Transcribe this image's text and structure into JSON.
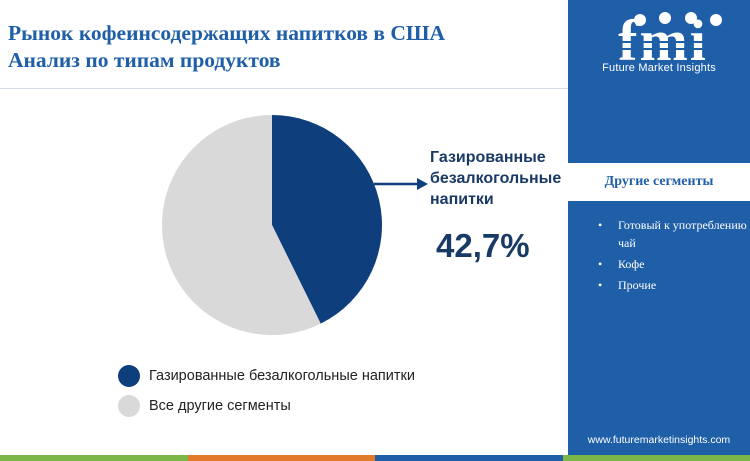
{
  "title": {
    "line1": "Рынок кофеинсодержащих напитков в США",
    "line2": "Анализ по типам продуктов"
  },
  "chart_data": {
    "type": "pie",
    "categories": [
      "Газированные безалкогольные напитки",
      "Все другие сегменты"
    ],
    "values": [
      42.7,
      57.3
    ],
    "colors": [
      "#0e3f7c",
      "#d9d9d9"
    ],
    "title": "",
    "legend_position": "bottom-left"
  },
  "callout": {
    "label": "Газированные безалкогольные напитки",
    "value": "42,7%"
  },
  "legend": [
    {
      "label": "Газированные безалкогольные напитки",
      "color": "#0e3f7c"
    },
    {
      "label": "Все другие сегменты",
      "color": "#d9d9d9"
    }
  ],
  "sidebar": {
    "brand": "fmi",
    "brand_subtitle": "Future Market Insights",
    "heading": "Другие сегменты",
    "items": [
      "Готовый к употреблению чай",
      "Кофе",
      "Прочие"
    ],
    "url": "www.futuremarketinsights.com",
    "background": "#1f5fa8"
  },
  "bottom_bar": [
    "#7ab648",
    "#e07b2a",
    "#1f5fa8",
    "#7ab648"
  ]
}
